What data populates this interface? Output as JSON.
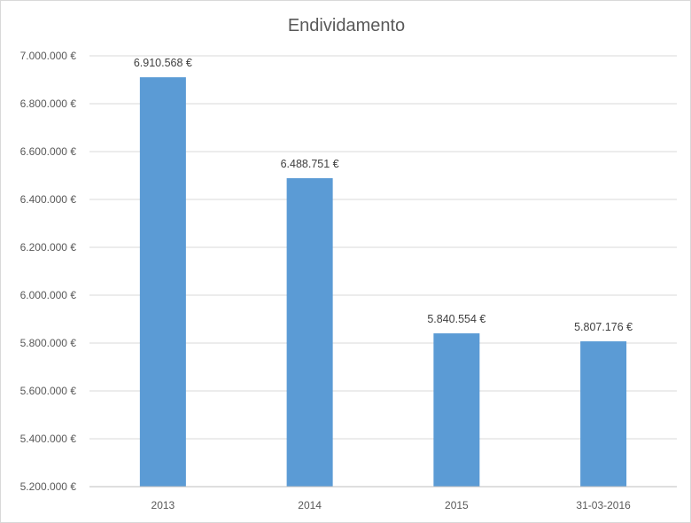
{
  "chart_data": {
    "type": "bar",
    "title": "Endividamento",
    "xlabel": "",
    "ylabel": "",
    "categories": [
      "2013",
      "2014",
      "2015",
      "31-03-2016"
    ],
    "values": [
      6910568,
      6488751,
      5840554,
      5807176
    ],
    "data_labels": [
      "6.910.568 €",
      "6.488.751 €",
      "5.840.554 €",
      "5.807.176 €"
    ],
    "ylim": [
      5200000,
      7000000
    ],
    "yticks": [
      5200000,
      5400000,
      5600000,
      5800000,
      6000000,
      6200000,
      6400000,
      6600000,
      6800000,
      7000000
    ],
    "ytick_labels": [
      "5.200.000 €",
      "5.400.000 €",
      "5.600.000 €",
      "5.800.000 €",
      "6.000.000 €",
      "6.200.000 €",
      "6.400.000 €",
      "6.600.000 €",
      "6.800.000 €",
      "7.000.000 €"
    ],
    "grid": true,
    "legend": "none",
    "colors": {
      "bar": "#5b9bd5",
      "grid": "#d9d9d9",
      "text": "#595959"
    }
  }
}
